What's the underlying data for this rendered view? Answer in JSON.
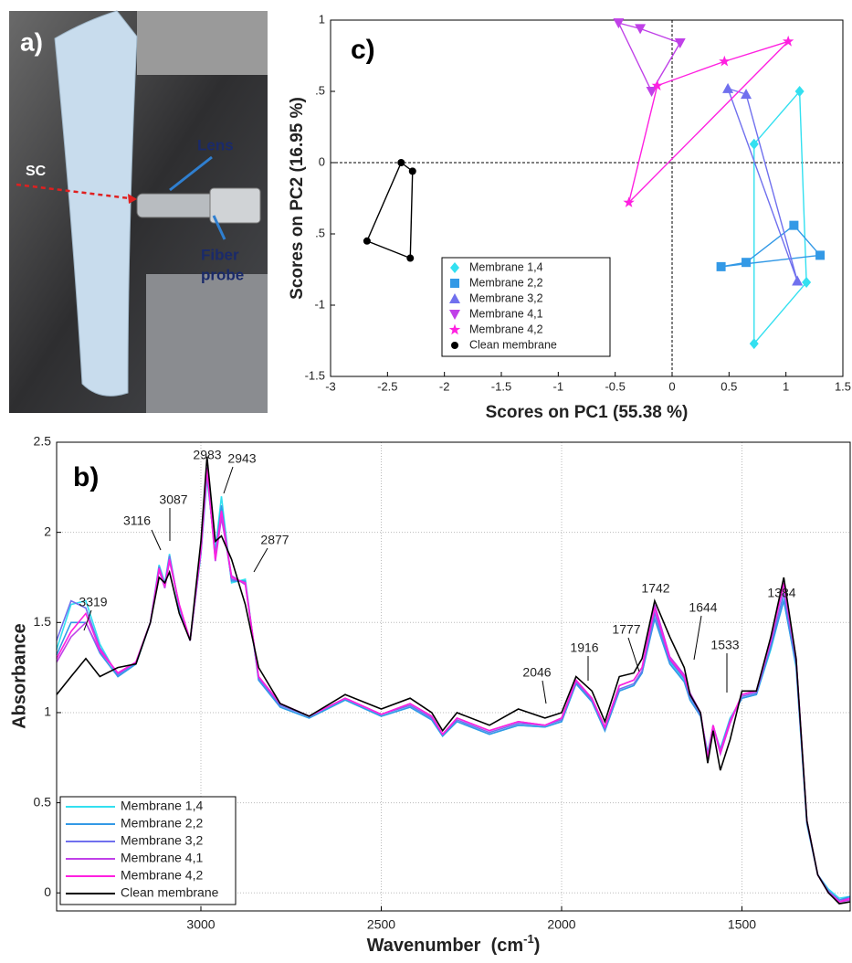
{
  "photo": {
    "panel_label": "a)",
    "labels": [
      "SC",
      "Lens",
      "Fiber",
      "probe"
    ]
  },
  "chart_data": [
    {
      "type": "scatter",
      "panel_label": "c)",
      "xlabel": "Scores on PC1 (55.38 %)",
      "ylabel": "Scores on PC2 (16.95 %)",
      "xlim": [
        -3,
        1.5
      ],
      "ylim": [
        -1.5,
        1
      ],
      "xticks": [
        -3,
        -2.5,
        -2,
        -1.5,
        -1,
        -0.5,
        0,
        0.5,
        1,
        1.5
      ],
      "yticks": [
        -1.5,
        -1,
        {
          "value": -0.5,
          "label": ".5"
        },
        0,
        {
          "value": 0.5,
          "label": ".5"
        },
        1
      ],
      "zero_lines": true,
      "legend": "lower-center",
      "series": [
        {
          "name": "Membrane 1,4",
          "color": "#33e0f0",
          "marker": "diamond",
          "x": [
            0.72,
            1.12,
            1.18,
            0.72
          ],
          "y": [
            0.13,
            0.5,
            -0.84,
            -1.27
          ]
        },
        {
          "name": "Membrane 2,2",
          "color": "#3399e6",
          "marker": "square",
          "x": [
            0.43,
            1.3,
            1.07,
            0.65
          ],
          "y": [
            -0.73,
            -0.65,
            -0.44,
            -0.7
          ]
        },
        {
          "name": "Membrane 3,2",
          "color": "#7070ee",
          "marker": "triangle-up",
          "x": [
            0.49,
            0.65,
            1.1
          ],
          "y": [
            0.52,
            0.48,
            -0.83
          ]
        },
        {
          "name": "Membrane 4,1",
          "color": "#c040e8",
          "marker": "triangle-down",
          "x": [
            -0.47,
            -0.28,
            0.07,
            -0.18
          ],
          "y": [
            0.98,
            0.94,
            0.84,
            0.5
          ]
        },
        {
          "name": "Membrane 4,2",
          "color": "#ff20e0",
          "marker": "star",
          "x": [
            -0.38,
            1.02,
            0.46,
            -0.13
          ],
          "y": [
            -0.28,
            0.85,
            0.71,
            0.54
          ]
        },
        {
          "name": "Clean membrane",
          "color": "#000000",
          "marker": "circle",
          "x": [
            -2.38,
            -2.28,
            -2.3,
            -2.68
          ],
          "y": [
            0.0,
            -0.06,
            -0.67,
            -0.55
          ]
        }
      ]
    },
    {
      "type": "line",
      "panel_label": "b)",
      "xlabel": [
        "Wavenumber  (cm",
        "-1",
        ")"
      ],
      "ylabel": "Absorbance",
      "xlim": [
        3400,
        1200
      ],
      "ylim": [
        -0.1,
        2.5
      ],
      "xticks": [
        3000,
        2500,
        2000,
        1500
      ],
      "yticks": [
        0,
        0.5,
        1,
        1.5,
        2,
        2.5
      ],
      "grid": true,
      "legend": "lower-left",
      "annotations": [
        "3319",
        "3116",
        "3087",
        "2983",
        "2943",
        "2877",
        "2046",
        "1916",
        "1777",
        "1742",
        "1644",
        "1533",
        "1384"
      ],
      "x": [
        3400,
        3360,
        3319,
        3280,
        3230,
        3180,
        3140,
        3116,
        3100,
        3087,
        3060,
        3030,
        3000,
        2983,
        2960,
        2943,
        2915,
        2877,
        2840,
        2780,
        2700,
        2600,
        2500,
        2420,
        2360,
        2330,
        2290,
        2200,
        2120,
        2046,
        2000,
        1960,
        1916,
        1880,
        1840,
        1800,
        1777,
        1742,
        1700,
        1660,
        1644,
        1615,
        1595,
        1580,
        1560,
        1533,
        1500,
        1460,
        1420,
        1384,
        1350,
        1320,
        1290,
        1260,
        1230,
        1200
      ],
      "series": [
        {
          "name": "Membrane 1,4",
          "color": "#33e0f0",
          "values": [
            1.35,
            1.6,
            1.62,
            1.38,
            1.2,
            1.27,
            1.5,
            1.82,
            1.72,
            1.88,
            1.58,
            1.4,
            1.88,
            2.3,
            1.9,
            2.2,
            1.72,
            1.74,
            1.18,
            1.03,
            0.97,
            1.07,
            0.98,
            1.03,
            0.96,
            0.87,
            0.95,
            0.88,
            0.93,
            0.92,
            0.95,
            1.16,
            1.06,
            0.9,
            1.12,
            1.15,
            1.22,
            1.55,
            1.28,
            1.18,
            1.08,
            0.98,
            0.78,
            0.92,
            0.8,
            0.97,
            1.08,
            1.1,
            1.35,
            1.63,
            1.25,
            0.38,
            0.1,
            0.02,
            -0.03,
            -0.02
          ]
        },
        {
          "name": "Membrane 2,2",
          "color": "#3399e6",
          "values": [
            1.32,
            1.5,
            1.5,
            1.33,
            1.2,
            1.27,
            1.5,
            1.8,
            1.7,
            1.86,
            1.58,
            1.4,
            1.88,
            2.32,
            1.88,
            2.15,
            1.73,
            1.73,
            1.18,
            1.03,
            0.97,
            1.07,
            0.98,
            1.03,
            0.96,
            0.87,
            0.95,
            0.88,
            0.93,
            0.92,
            0.95,
            1.16,
            1.06,
            0.9,
            1.12,
            1.15,
            1.22,
            1.52,
            1.27,
            1.17,
            1.07,
            0.98,
            0.77,
            0.92,
            0.79,
            0.96,
            1.08,
            1.1,
            1.36,
            1.62,
            1.26,
            0.39,
            0.1,
            0.01,
            -0.04,
            -0.02
          ]
        },
        {
          "name": "Membrane 3,2",
          "color": "#7070ee",
          "values": [
            1.4,
            1.62,
            1.58,
            1.36,
            1.21,
            1.28,
            1.5,
            1.81,
            1.71,
            1.87,
            1.59,
            1.4,
            1.89,
            2.33,
            1.87,
            2.1,
            1.74,
            1.72,
            1.19,
            1.04,
            0.98,
            1.08,
            0.99,
            1.04,
            0.97,
            0.88,
            0.96,
            0.89,
            0.94,
            0.93,
            0.96,
            1.17,
            1.07,
            0.91,
            1.13,
            1.16,
            1.23,
            1.55,
            1.29,
            1.19,
            1.09,
            0.99,
            0.76,
            0.93,
            0.79,
            0.96,
            1.09,
            1.11,
            1.38,
            1.66,
            1.28,
            0.39,
            0.1,
            0.01,
            -0.04,
            -0.03
          ]
        },
        {
          "name": "Membrane 4,1",
          "color": "#c040e8",
          "values": [
            1.28,
            1.42,
            1.5,
            1.34,
            1.22,
            1.28,
            1.5,
            1.79,
            1.69,
            1.84,
            1.6,
            1.4,
            1.9,
            2.36,
            1.84,
            2.08,
            1.76,
            1.71,
            1.2,
            1.05,
            0.98,
            1.08,
            0.99,
            1.05,
            0.98,
            0.88,
            0.97,
            0.9,
            0.95,
            0.93,
            0.97,
            1.18,
            1.08,
            0.92,
            1.15,
            1.18,
            1.25,
            1.6,
            1.31,
            1.21,
            1.11,
            1.0,
            0.74,
            0.93,
            0.77,
            0.94,
            1.1,
            1.12,
            1.41,
            1.7,
            1.3,
            0.4,
            0.1,
            0.0,
            -0.05,
            -0.04
          ]
        },
        {
          "name": "Membrane 4,2",
          "color": "#ff20e0",
          "values": [
            1.3,
            1.45,
            1.55,
            1.35,
            1.22,
            1.28,
            1.5,
            1.8,
            1.7,
            1.85,
            1.6,
            1.4,
            1.9,
            2.35,
            1.85,
            2.12,
            1.75,
            1.72,
            1.2,
            1.05,
            0.98,
            1.08,
            0.99,
            1.05,
            0.98,
            0.88,
            0.97,
            0.9,
            0.95,
            0.93,
            0.97,
            1.18,
            1.08,
            0.92,
            1.15,
            1.18,
            1.25,
            1.58,
            1.3,
            1.2,
            1.1,
            1.0,
            0.75,
            0.93,
            0.78,
            0.95,
            1.1,
            1.12,
            1.4,
            1.72,
            1.3,
            0.4,
            0.1,
            0.0,
            -0.05,
            -0.03
          ]
        },
        {
          "name": "Clean membrane",
          "color": "#000000",
          "values": [
            1.1,
            1.2,
            1.3,
            1.2,
            1.25,
            1.27,
            1.5,
            1.75,
            1.72,
            1.78,
            1.55,
            1.4,
            1.95,
            2.42,
            1.95,
            1.98,
            1.85,
            1.6,
            1.25,
            1.05,
            0.98,
            1.1,
            1.02,
            1.08,
            1.0,
            0.9,
            1.0,
            0.93,
            1.02,
            0.97,
            1.0,
            1.2,
            1.12,
            0.95,
            1.2,
            1.22,
            1.3,
            1.62,
            1.42,
            1.25,
            1.1,
            1.0,
            0.72,
            0.9,
            0.68,
            0.85,
            1.12,
            1.12,
            1.42,
            1.75,
            1.3,
            0.4,
            0.1,
            0.0,
            -0.06,
            -0.05
          ]
        }
      ]
    }
  ]
}
